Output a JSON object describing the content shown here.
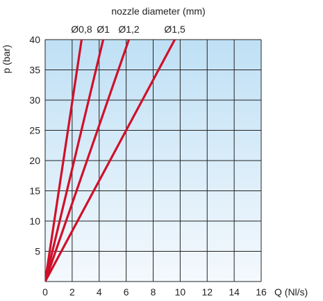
{
  "chart_data": {
    "type": "line",
    "title": "nozzle diameter (mm)",
    "xlabel": "Q (Nl/s)",
    "ylabel": "p (bar)",
    "xlim": [
      0,
      16
    ],
    "ylim": [
      0,
      40
    ],
    "xticks": [
      0,
      2,
      4,
      6,
      8,
      10,
      12,
      14,
      16
    ],
    "yticks": [
      5,
      10,
      15,
      20,
      25,
      30,
      35,
      40
    ],
    "grid": true,
    "background_gradient": [
      "#bfe0f5",
      "#f4f9fd"
    ],
    "line_color": "#d0102a",
    "grid_color": "#222222",
    "series": [
      {
        "name": "Ø0,8",
        "x": [
          0,
          2.7
        ],
        "y": [
          0,
          40
        ]
      },
      {
        "name": "Ø1",
        "x": [
          0,
          4.3
        ],
        "y": [
          0,
          40
        ]
      },
      {
        "name": "Ø1,2",
        "x": [
          0,
          6.2
        ],
        "y": [
          0,
          40
        ]
      },
      {
        "name": "Ø1,5",
        "x": [
          0,
          9.6
        ],
        "y": [
          0,
          40
        ]
      }
    ]
  }
}
